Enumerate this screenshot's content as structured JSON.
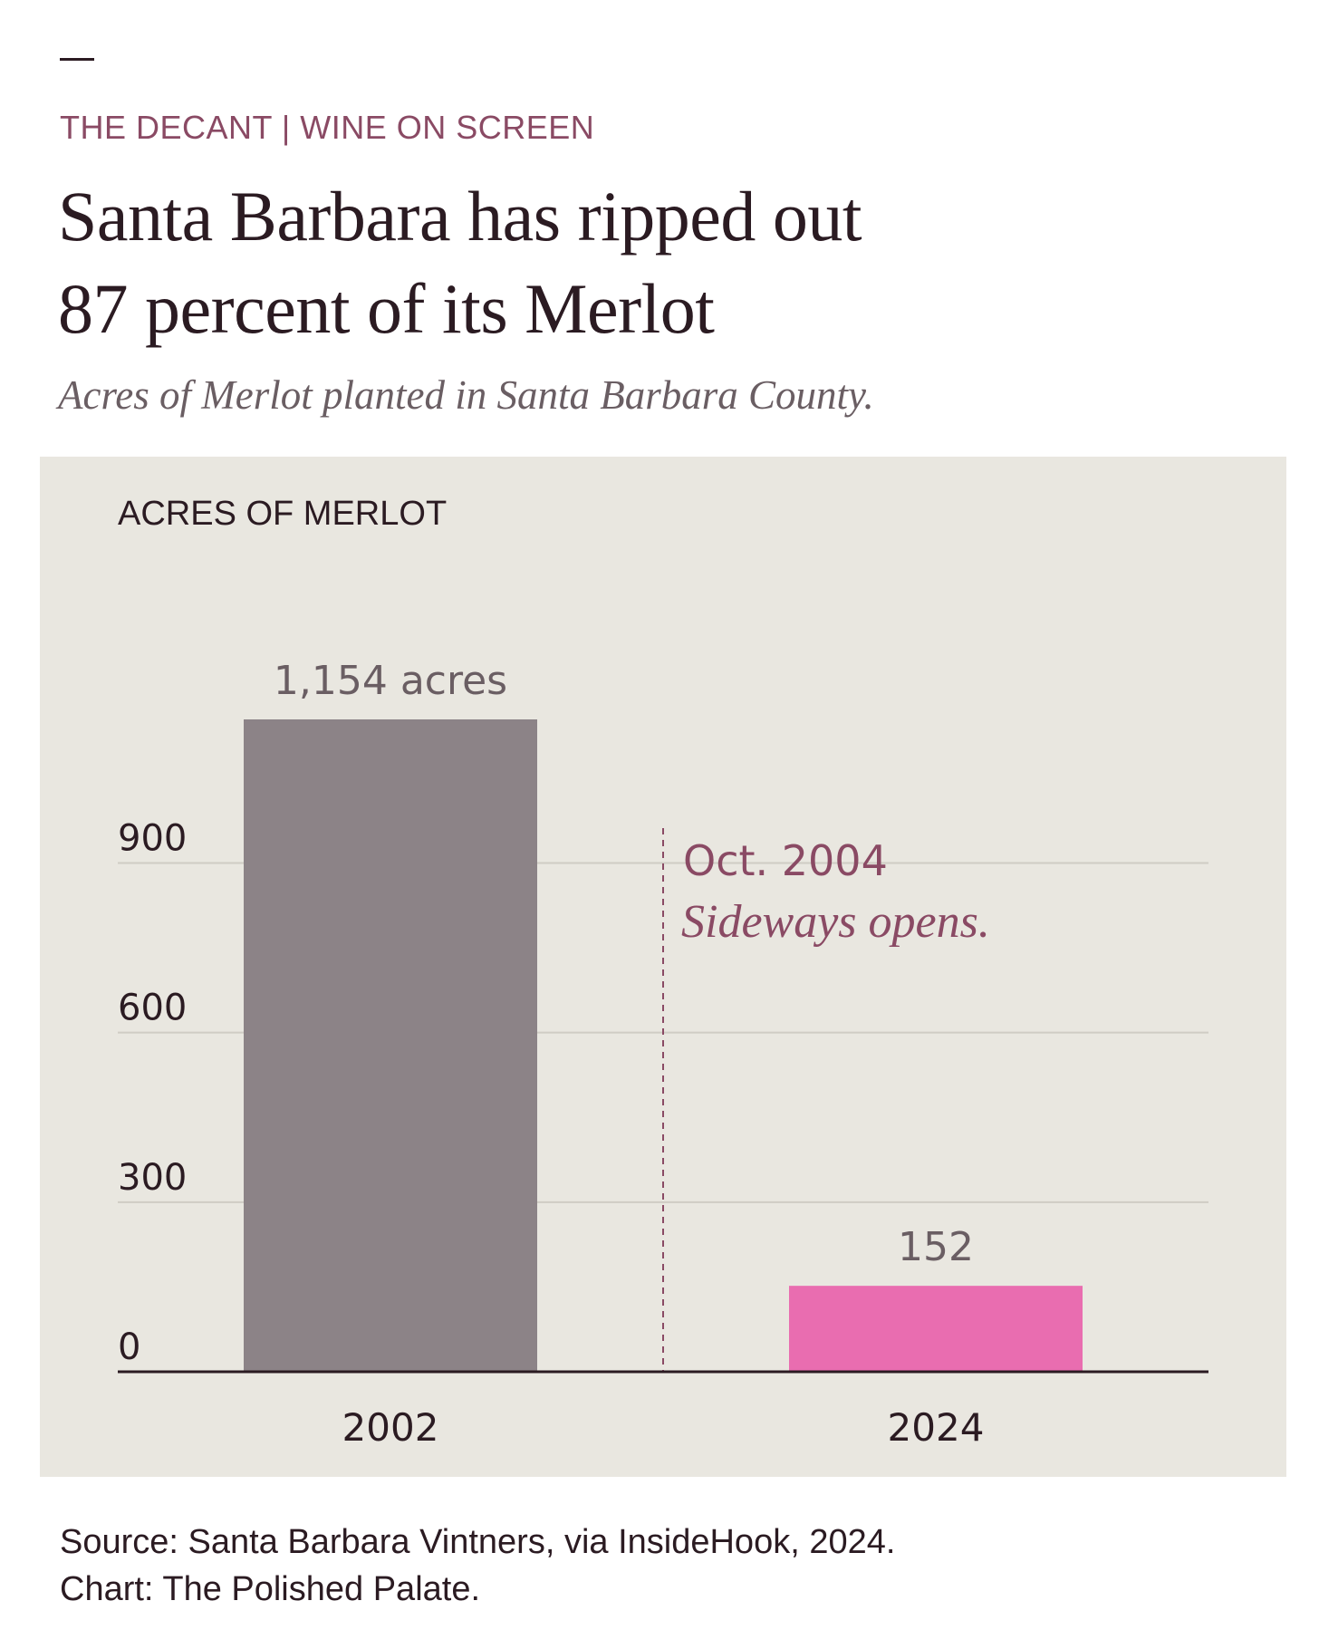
{
  "header": {
    "kicker": "THE DECANT | WINE ON SCREEN",
    "title_line1": "Santa Barbara has ripped out",
    "title_line2": "87 percent of its Merlot",
    "subtitle": "Acres of Merlot planted in Santa Barbara County."
  },
  "chart_data": {
    "type": "bar",
    "ylabel": "ACRES OF MERLOT",
    "categories": [
      "2002",
      "2024"
    ],
    "values": [
      1154,
      152
    ],
    "value_labels": [
      "1,154 acres",
      "152"
    ],
    "bar_colors": [
      "#8c8387",
      "#e96db0"
    ],
    "ylim": [
      0,
      1154
    ],
    "yticks": [
      0,
      300,
      600,
      900
    ],
    "grid": true,
    "annotation": {
      "date": "Oct. 2004",
      "note": "Sideways opens.",
      "color": "#8a4a64"
    }
  },
  "footer": {
    "source": "Source: Santa Barbara Vintners, via InsideHook, 2024.",
    "credit": "Chart: The Polished Palate."
  }
}
